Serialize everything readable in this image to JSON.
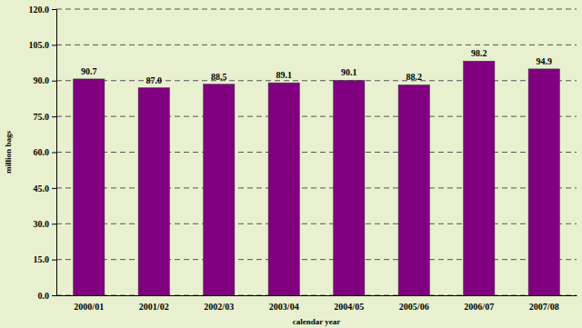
{
  "chart_data": {
    "type": "bar",
    "categories": [
      "2000/01",
      "2001/02",
      "2002/03",
      "2003/04",
      "2004/05",
      "2005/06",
      "2006/07",
      "2007/08"
    ],
    "values": [
      90.7,
      87.0,
      88.5,
      89.1,
      90.1,
      88.2,
      98.2,
      94.9
    ],
    "value_labels": [
      "90.7",
      "87.0",
      "88.5",
      "89.1",
      "90.1",
      "88.2",
      "98.2",
      "94.9"
    ],
    "data_labels": true,
    "color": "#800080",
    "ylim": [
      0,
      120
    ],
    "yticks": [
      {
        "value": 0,
        "label": "0.0"
      },
      {
        "value": 15,
        "label": "15.0"
      },
      {
        "value": 30,
        "label": "30.0"
      },
      {
        "value": 45,
        "label": "45.0"
      },
      {
        "value": 60,
        "label": "60.0"
      },
      {
        "value": 75,
        "label": "75.0"
      },
      {
        "value": 90,
        "label": "90.0"
      },
      {
        "value": 105,
        "label": "105.0"
      },
      {
        "value": 120,
        "label": "120.0"
      }
    ],
    "grid": true,
    "x_label": "calendar year",
    "y_label": "million bags"
  }
}
